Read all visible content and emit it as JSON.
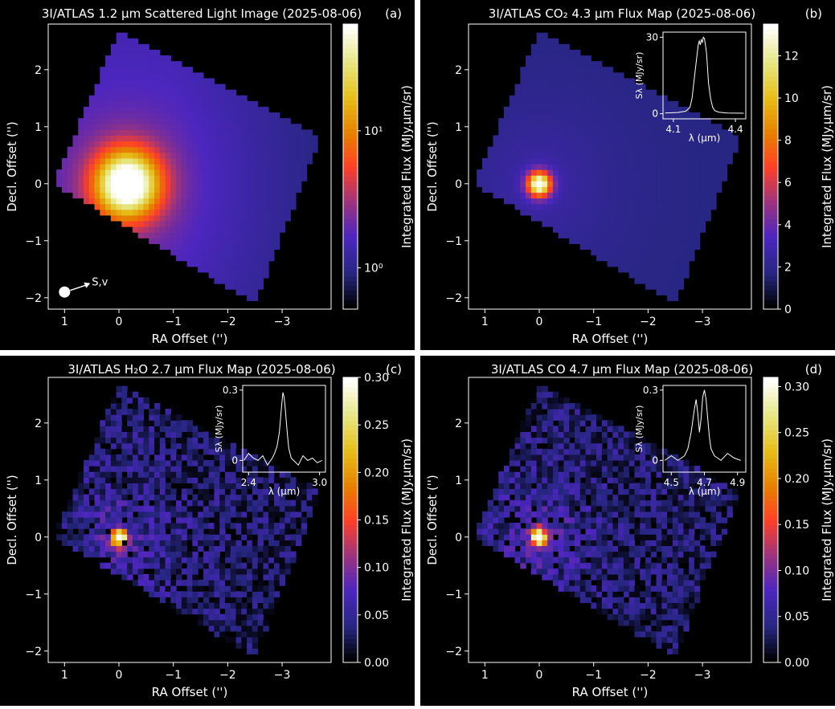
{
  "chart_data": [
    {
      "type": "heatmap",
      "panel": "(a)",
      "title": "3I/ATLAS 1.2 μm Scattered Light Image (2025-08-06)",
      "xlabel": "RA Offset ('')",
      "ylabel": "Decl. Offset ('')",
      "colorbar_label": "Integrated Flux (MJy.μm/sr)",
      "colorbar_scale": "log",
      "colorbar_ticks": [
        "10⁰",
        "10¹"
      ],
      "colorbar_range": [
        0.5,
        60
      ],
      "xlim": [
        1.3,
        -3.9
      ],
      "ylim": [
        -2.2,
        2.8
      ],
      "xticks": [
        "1",
        "0",
        "−1",
        "−2",
        "−3"
      ],
      "yticks": [
        "2",
        "1",
        "0",
        "−1",
        "−2"
      ],
      "peak_position": [
        0,
        0
      ],
      "annotation": "S,v",
      "colormap": "CMRmap"
    },
    {
      "type": "heatmap",
      "panel": "(b)",
      "title": "3I/ATLAS CO₂ 4.3 μm Flux Map (2025-08-06)",
      "xlabel": "RA Offset ('')",
      "ylabel": "Decl. Offset ('')",
      "colorbar_label": "Integrated Flux (MJy.μm/sr)",
      "colorbar_scale": "linear",
      "colorbar_ticks": [
        "0",
        "2",
        "4",
        "6",
        "8",
        "10",
        "12"
      ],
      "colorbar_range": [
        0,
        13.5
      ],
      "xlim": [
        1.3,
        -3.9
      ],
      "ylim": [
        -2.2,
        2.8
      ],
      "xticks": [
        "1",
        "0",
        "−1",
        "−2",
        "−3"
      ],
      "yticks": [
        "2",
        "1",
        "0",
        "−1",
        "−2"
      ],
      "peak_position": [
        0,
        0
      ],
      "inset": {
        "type": "line",
        "xlabel": "λ (μm)",
        "ylabel": "Sλ (MJy/sr)",
        "xticks": [
          "4.1",
          "4.4"
        ],
        "yticks": [
          "0",
          "30"
        ],
        "xlim": [
          4.05,
          4.45
        ],
        "ylim": [
          -2,
          32
        ],
        "x": [
          4.06,
          4.12,
          4.16,
          4.18,
          4.19,
          4.2,
          4.21,
          4.22,
          4.225,
          4.23,
          4.235,
          4.24,
          4.245,
          4.25,
          4.255,
          4.26,
          4.265,
          4.27,
          4.28,
          4.29,
          4.3,
          4.32,
          4.36,
          4.44
        ],
        "y": [
          0.3,
          0.5,
          1.0,
          2.5,
          6.0,
          13.0,
          20.0,
          27.0,
          28.5,
          27.0,
          29.0,
          28.0,
          30.0,
          29.5,
          27.0,
          24.0,
          18.0,
          12.0,
          6.0,
          2.5,
          1.2,
          0.6,
          0.3,
          0.2
        ]
      },
      "colormap": "CMRmap"
    },
    {
      "type": "heatmap",
      "panel": "(c)",
      "title": "3I/ATLAS H₂O 2.7 μm Flux Map (2025-08-06)",
      "xlabel": "RA Offset ('')",
      "ylabel": "Decl. Offset ('')",
      "colorbar_label": "Integrated Flux (MJy.μm/sr)",
      "colorbar_scale": "linear",
      "colorbar_ticks": [
        "0.00",
        "0.05",
        "0.10",
        "0.15",
        "0.20",
        "0.25",
        "0.30"
      ],
      "colorbar_range": [
        0,
        0.3
      ],
      "xlim": [
        1.3,
        -3.9
      ],
      "ylim": [
        -2.2,
        2.8
      ],
      "xticks": [
        "1",
        "0",
        "−1",
        "−2",
        "−3"
      ],
      "yticks": [
        "2",
        "1",
        "0",
        "−1",
        "−2"
      ],
      "peak_position": [
        0,
        0
      ],
      "inset": {
        "type": "line",
        "xlabel": "λ (μm)",
        "ylabel": "Sλ (MJy/sr)",
        "xticks": [
          "2.4",
          "3.0"
        ],
        "yticks": [
          "0",
          "0.3"
        ],
        "xlim": [
          2.35,
          3.05
        ],
        "ylim": [
          -0.05,
          0.32
        ],
        "x": [
          2.36,
          2.4,
          2.44,
          2.48,
          2.52,
          2.56,
          2.6,
          2.62,
          2.64,
          2.66,
          2.67,
          2.68,
          2.69,
          2.7,
          2.71,
          2.72,
          2.73,
          2.74,
          2.75,
          2.76,
          2.78,
          2.82,
          2.86,
          2.9,
          2.94,
          2.98,
          3.02
        ],
        "y": [
          0.0,
          0.03,
          0.01,
          0.0,
          0.02,
          -0.02,
          0.01,
          0.03,
          0.06,
          0.12,
          0.18,
          0.24,
          0.29,
          0.27,
          0.22,
          0.16,
          0.1,
          0.05,
          0.03,
          0.01,
          0.0,
          -0.02,
          0.02,
          0.0,
          0.01,
          -0.01,
          0.0
        ]
      },
      "colormap": "CMRmap"
    },
    {
      "type": "heatmap",
      "panel": "(d)",
      "title": "3I/ATLAS CO 4.7 μm Flux Map (2025-08-06)",
      "xlabel": "RA Offset ('')",
      "ylabel": "Decl. Offset ('')",
      "colorbar_label": "Integrated Flux (MJy.μm/sr)",
      "colorbar_scale": "linear",
      "colorbar_ticks": [
        "0.00",
        "0.05",
        "0.10",
        "0.15",
        "0.20",
        "0.25",
        "0.30"
      ],
      "colorbar_range": [
        0,
        0.31
      ],
      "xlim": [
        1.3,
        -3.9
      ],
      "ylim": [
        -2.2,
        2.8
      ],
      "xticks": [
        "1",
        "0",
        "−1",
        "−2",
        "−3"
      ],
      "yticks": [
        "2",
        "1",
        "0",
        "−1",
        "−2"
      ],
      "peak_position": [
        0,
        0
      ],
      "inset": {
        "type": "line",
        "xlabel": "λ (μm)",
        "ylabel": "Sλ (MJy/sr)",
        "xticks": [
          "4.5",
          "4.7",
          "4.9"
        ],
        "yticks": [
          "0",
          "0.3"
        ],
        "xlim": [
          4.45,
          4.95
        ],
        "ylim": [
          -0.05,
          0.32
        ],
        "x": [
          4.46,
          4.5,
          4.54,
          4.58,
          4.6,
          4.62,
          4.64,
          4.65,
          4.66,
          4.67,
          4.68,
          4.69,
          4.7,
          4.71,
          4.72,
          4.73,
          4.74,
          4.76,
          4.8,
          4.84,
          4.88,
          4.92
        ],
        "y": [
          0.0,
          0.02,
          0.0,
          0.02,
          0.05,
          0.12,
          0.22,
          0.26,
          0.2,
          0.12,
          0.18,
          0.27,
          0.3,
          0.26,
          0.18,
          0.1,
          0.05,
          0.02,
          0.0,
          0.03,
          0.01,
          0.0
        ]
      },
      "colormap": "CMRmap"
    }
  ]
}
